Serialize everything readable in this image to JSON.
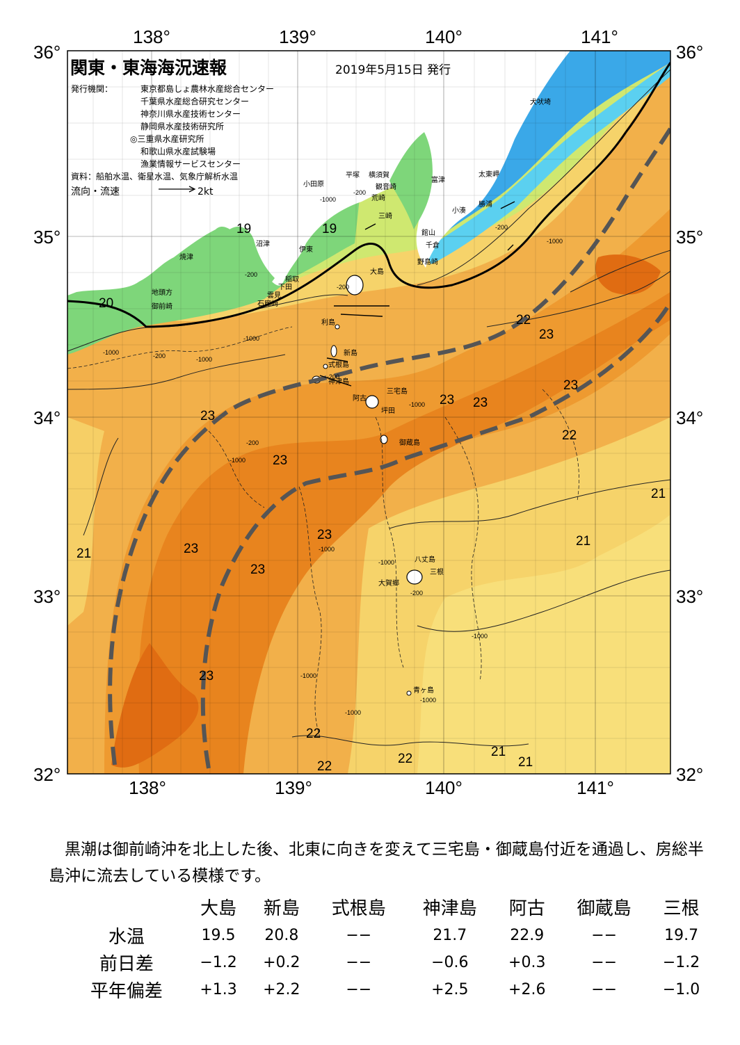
{
  "map": {
    "title": "関東・東海海況速報",
    "issue_date": "2019年5月15日 発行",
    "issuer_label": "発行機関：",
    "issuers": [
      "東京都島しょ農林水産総合センター",
      "千葉県水産総合研究センター",
      "神奈川県水産技術センター",
      "静岡県水産技術研究所",
      "◎三重県水産研究所",
      "和歌山県水産試験場",
      "漁業情報サービスセンター"
    ],
    "source": "資料：船舶水温、衛星水温、気象庁解析水温",
    "flow_label": "流向・流速",
    "flow_scale": "2kt",
    "lon_labels": [
      "138°",
      "139°",
      "140°",
      "141°"
    ],
    "lat_labels": [
      "36°",
      "35°",
      "34°",
      "33°",
      "32°"
    ],
    "places": [
      {
        "id": "inubosaki",
        "text": "犬吠埼"
      },
      {
        "id": "taitomisaki",
        "text": "太東岬"
      },
      {
        "id": "katsuura",
        "text": "勝浦"
      },
      {
        "id": "kominato",
        "text": "小湊"
      },
      {
        "id": "futtsu",
        "text": "富津"
      },
      {
        "id": "yokosuka",
        "text": "横須賀"
      },
      {
        "id": "hiratsuka",
        "text": "平塚"
      },
      {
        "id": "odawara",
        "text": "小田原"
      },
      {
        "id": "kannonzaki",
        "text": "観音崎"
      },
      {
        "id": "arasaki",
        "text": "荒崎"
      },
      {
        "id": "misaki",
        "text": "三崎"
      },
      {
        "id": "tateyama",
        "text": "館山"
      },
      {
        "id": "chikura",
        "text": "千倉"
      },
      {
        "id": "nojimazaki",
        "text": "野島崎"
      },
      {
        "id": "numazu",
        "text": "沼津"
      },
      {
        "id": "ito",
        "text": "伊東"
      },
      {
        "id": "yaizu",
        "text": "焼津"
      },
      {
        "id": "inatori",
        "text": "稲取"
      },
      {
        "id": "shimoda",
        "text": "下田"
      },
      {
        "id": "kumomi",
        "text": "雲見"
      },
      {
        "id": "irozaki",
        "text": "石廊崎"
      },
      {
        "id": "jitogata",
        "text": "地頭方"
      },
      {
        "id": "omaezaki",
        "text": "御前崎"
      },
      {
        "id": "oshima",
        "text": "大島"
      },
      {
        "id": "toshima",
        "text": "利島"
      },
      {
        "id": "niijima",
        "text": "新島"
      },
      {
        "id": "shikinejima",
        "text": "式根島"
      },
      {
        "id": "kozushima",
        "text": "神津島"
      },
      {
        "id": "miyakejima",
        "text": "三宅島"
      },
      {
        "id": "ako",
        "text": "阿古"
      },
      {
        "id": "tsubota",
        "text": "坪田"
      },
      {
        "id": "mikurajima",
        "text": "御蔵島"
      },
      {
        "id": "hachijojima",
        "text": "八丈島"
      },
      {
        "id": "mitsune",
        "text": "三根"
      },
      {
        "id": "okago",
        "text": "大賀郷"
      },
      {
        "id": "aogashima",
        "text": "青ヶ島"
      }
    ],
    "temperature_labels": [
      {
        "id": "t19a",
        "text": "19"
      },
      {
        "id": "t19b",
        "text": "19"
      },
      {
        "id": "t20",
        "text": "20"
      },
      {
        "id": "t22a",
        "text": "22"
      },
      {
        "id": "t23a",
        "text": "23"
      },
      {
        "id": "t23b",
        "text": "23"
      },
      {
        "id": "t23c",
        "text": "23"
      },
      {
        "id": "t23d",
        "text": "23"
      },
      {
        "id": "t23e",
        "text": "23"
      },
      {
        "id": "t22b",
        "text": "22"
      },
      {
        "id": "t21a",
        "text": "21"
      },
      {
        "id": "t23f",
        "text": "23"
      },
      {
        "id": "t23g",
        "text": "23"
      },
      {
        "id": "t21b",
        "text": "21"
      },
      {
        "id": "t23h",
        "text": "23"
      },
      {
        "id": "t23i",
        "text": "23"
      },
      {
        "id": "t21c",
        "text": "21"
      },
      {
        "id": "t23j",
        "text": "23"
      },
      {
        "id": "t22c",
        "text": "22"
      },
      {
        "id": "t22d",
        "text": "22"
      },
      {
        "id": "t22e",
        "text": "22"
      },
      {
        "id": "t21d",
        "text": "21"
      },
      {
        "id": "t21e",
        "text": "21"
      }
    ],
    "depth_labels": [
      {
        "id": "d1",
        "text": "-1000"
      },
      {
        "id": "d2",
        "text": "-200"
      },
      {
        "id": "d3",
        "text": "-200"
      },
      {
        "id": "d4",
        "text": "-1000"
      },
      {
        "id": "d5",
        "text": "-200"
      },
      {
        "id": "d6",
        "text": "-1000"
      },
      {
        "id": "d7",
        "text": "-200"
      },
      {
        "id": "d8",
        "text": "-1000"
      },
      {
        "id": "d9",
        "text": "-1000"
      },
      {
        "id": "d10",
        "text": "-200"
      },
      {
        "id": "d11",
        "text": "-1000"
      },
      {
        "id": "d12",
        "text": "-1000"
      },
      {
        "id": "d13",
        "text": "-200"
      },
      {
        "id": "d14",
        "text": "-1000"
      },
      {
        "id": "d15",
        "text": "-1000"
      },
      {
        "id": "d16",
        "text": "-200"
      },
      {
        "id": "d17",
        "text": "-1000"
      },
      {
        "id": "d18",
        "text": "-1000"
      },
      {
        "id": "d19",
        "text": "-1000"
      },
      {
        "id": "d20",
        "text": "-200"
      },
      {
        "id": "d21",
        "text": "-1000"
      }
    ],
    "colors": {
      "land": "#ffffff",
      "cold_cyan": "#5bd0f0",
      "blue": "#3aa8e8",
      "green": "#7ed67a",
      "yellow_green": "#cfe870",
      "yellow": "#f6d36a",
      "light_orange": "#f2b04a",
      "orange": "#ee9a30",
      "deep_orange": "#e8841e",
      "dark_orange": "#e06c12",
      "kuroshio_axis": "#555555",
      "contour": "#222222"
    }
  },
  "summary": "黒潮は御前崎沖を北上した後、北東に向きを変えて三宅島・御蔵島付近を通過し、房総半島沖に流去している模様です。",
  "table": {
    "columns": [
      "大島",
      "新島",
      "式根島",
      "神津島",
      "阿古",
      "御蔵島",
      "三根"
    ],
    "rows": [
      {
        "label": "水温",
        "values": [
          "19.5",
          "20.8",
          "−−",
          "21.7",
          "22.9",
          "−−",
          "19.7"
        ]
      },
      {
        "label": "前日差",
        "values": [
          "−1.2",
          "+0.2",
          "−−",
          "−0.6",
          "+0.3",
          "−−",
          "−1.2"
        ]
      },
      {
        "label": "平年偏差",
        "values": [
          "+1.3",
          "+2.2",
          "−−",
          "+2.5",
          "+2.6",
          "−−",
          "−1.0"
        ]
      }
    ]
  }
}
